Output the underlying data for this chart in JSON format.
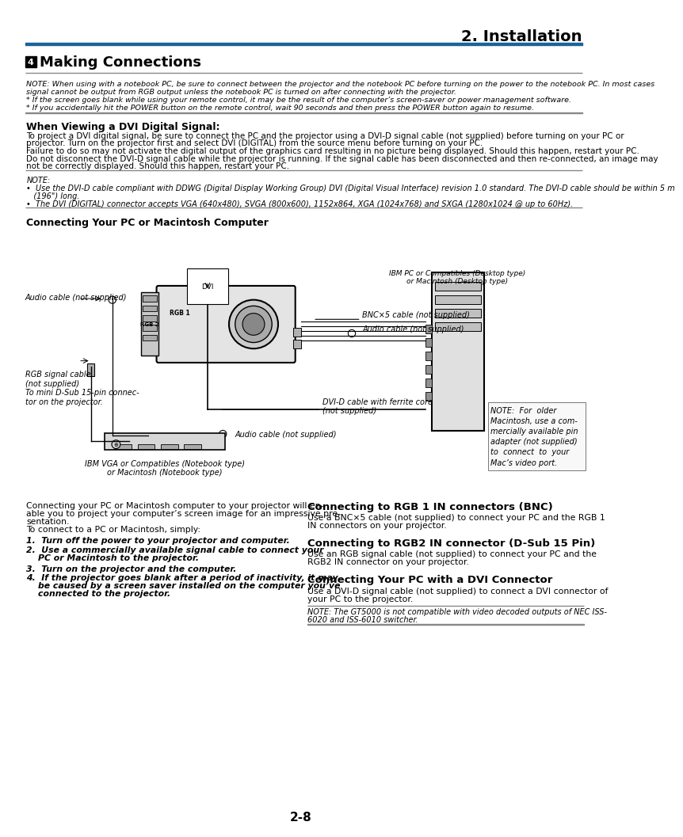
{
  "page_header": "2. Installation",
  "section_number": "4",
  "section_title": "Making Connections",
  "note_italic1": "NOTE: When using with a notebook PC, be sure to connect between the projector and the notebook PC before turning on the power to the notebook PC. In most cases",
  "note_italic2": "signal cannot be output from RGB output unless the notebook PC is turned on after connecting with the projector.",
  "note_star1": "* If the screen goes blank while using your remote control, it may be the result of the computer’s screen-saver or power management software.",
  "note_star2": "* If you accidentally hit the POWER button on the remote control, wait 90 seconds and then press the POWER button again to resume.",
  "dvi_heading": "When Viewing a DVI Digital Signal:",
  "dvi_para1a": "To project a DVI digital signal, be sure to connect the PC and the projector using a DVI-D signal cable (not supplied) before turning on your PC or",
  "dvi_para1b": "projector. Turn on the projector first and select DVI (DIGITAL) from the source menu before turning on your PC.",
  "dvi_para2a": "Failure to do so may not activate the digital output of the graphics card resulting in no picture being displayed. Should this happen, restart your PC.",
  "dvi_para2b": "Do not disconnect the DVI-D signal cable while the projector is running. If the signal cable has been disconnected and then re-connected, an image may",
  "dvi_para2c": "not be correctly displayed. Should this happen, restart your PC.",
  "note2_heading": "NOTE:",
  "note2_bullet1a": "•  Use the DVI-D cable compliant with DDWG (Digital Display Working Group) DVI (Digital Visual Interface) revision 1.0 standard. The DVI-D cable should be within 5 m",
  "note2_bullet1b": "   (196\") long.",
  "note2_bullet2": "•  The DVI (DIGITAL) connector accepts VGA (640x480), SVGA (800x600), 1152x864, XGA (1024x768) and SXGA (1280x1024 @ up to 60Hz).",
  "connecting_heading": "Connecting Your PC or Macintosh Computer",
  "left_col_text1": "Connecting your PC or Macintosh computer to your projector will en-",
  "left_col_text2": "able you to project your computer’s screen image for an impressive pre-",
  "left_col_text3": "sentation.",
  "left_col_text4": "To connect to a PC or Macintosh, simply:",
  "left_col_item1": "1.  Turn off the power to your projector and computer.",
  "left_col_item2a": "2.  Use a commercially available signal cable to connect your",
  "left_col_item2b": "    PC or Macintosh to the projector.",
  "left_col_item3": "3.  Turn on the projector and the computer.",
  "left_col_item4a": "4.  If the projector goes blank after a period of inactivity, it may",
  "left_col_item4b": "    be caused by a screen saver installed on the computer you’ve",
  "left_col_item4c": "    connected to the projector.",
  "bnc_heading": "Connecting to RGB 1 IN connectors (BNC)",
  "bnc_text1": "Use a BNC×5 cable (not supplied) to connect your PC and the RGB 1",
  "bnc_text2": "IN connectors on your projector.",
  "rgb2_heading": "Connecting to RGB2 IN connector (D-Sub 15 Pin)",
  "rgb2_text1": "Use an RGB signal cable (not supplied) to connect your PC and the",
  "rgb2_text2": "RGB2 IN connector on your projector.",
  "dvi_conn_heading": "Connecting Your PC with a DVI Connector",
  "dvi_conn_text1": "Use a DVI-D signal cable (not supplied) to connect a DVI connector of",
  "dvi_conn_text2": "your PC to the projector.",
  "dvi_conn_note1": "NOTE: The GT5000 is not compatible with video decoded outputs of NEC ISS-",
  "dvi_conn_note2": "6020 and ISS-6010 switcher.",
  "page_num": "2-8",
  "bg_color": "#ffffff",
  "text_color": "#000000",
  "header_line_color": "#1a6496"
}
